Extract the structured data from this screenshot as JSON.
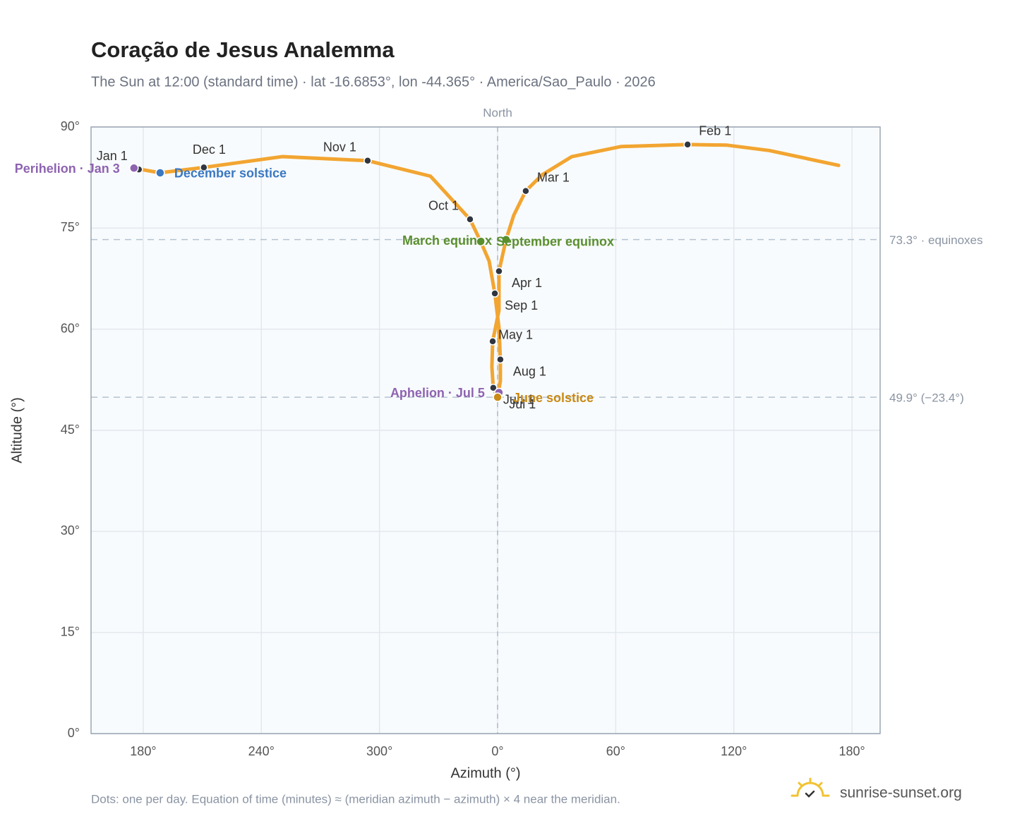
{
  "chart_data": {
    "type": "scatter",
    "title": "Coração de Jesus Analemma",
    "subtitle": "The Sun at 12:00 (standard time) · lat -16.6853°, lon -44.365° · America/Sao_Paulo · 2026",
    "x_label": "Azimuth (°)",
    "y_label": "Altitude (°)",
    "xlim": [
      153.5,
      554.3
    ],
    "ylim": [
      0,
      90
    ],
    "xticks": [
      {
        "value": 180,
        "label": "180°"
      },
      {
        "value": 240,
        "label": "240°"
      },
      {
        "value": 300,
        "label": "300°"
      },
      {
        "value": 360,
        "label": "0°"
      },
      {
        "value": 420,
        "label": "60°"
      },
      {
        "value": 480,
        "label": "120°"
      },
      {
        "value": 540,
        "label": "180°"
      }
    ],
    "yticks": [
      {
        "value": 0,
        "label": "0°"
      },
      {
        "value": 15,
        "label": "15°"
      },
      {
        "value": 30,
        "label": "30°"
      },
      {
        "value": 45,
        "label": "45°"
      },
      {
        "value": 60,
        "label": "60°"
      },
      {
        "value": 75,
        "label": "75°"
      },
      {
        "value": 90,
        "label": "90°"
      }
    ],
    "grid": true,
    "color": "#f2a531",
    "meridian": {
      "value": 360,
      "label": "North"
    },
    "x": [
      177.8,
      175.3,
      null,
      533.2,
      498.1,
      476.6,
      456.5,
      422.8,
      397.7,
      382.6,
      374.3,
      368.2,
      364.3,
      360.7,
      360.7,
      357.5,
      357.1,
      357.8,
      360.0,
      360.1,
      361.4,
      361.4,
      360.7,
      358.6,
      355.7,
      351.4,
      346.0,
      325.9,
      294.0,
      250.6,
      210.8,
      196.8,
      188.6,
      178.9
    ],
    "values": [
      83.7,
      83.9,
      null,
      84.3,
      86.5,
      87.3,
      87.4,
      87.1,
      85.6,
      82.9,
      80.5,
      76.9,
      73.3,
      68.6,
      62.8,
      58.2,
      54.4,
      51.3,
      49.9,
      50.2,
      52.3,
      55.5,
      60.2,
      65.3,
      70.1,
      73.0,
      76.3,
      82.7,
      85.0,
      85.6,
      84.0,
      83.5,
      83.2,
      83.7
    ],
    "labels": [
      "Jan 1",
      null,
      null,
      null,
      null,
      null,
      "Feb 1",
      null,
      null,
      null,
      "Mar 1",
      null,
      null,
      "Apr 1",
      null,
      "May 1",
      null,
      "Jun 1",
      null,
      "Jul 1",
      null,
      "Aug 1",
      null,
      "Sep 1",
      null,
      null,
      "Oct 1",
      null,
      "Nov 1",
      null,
      "Dec 1",
      null,
      null,
      null
    ],
    "events": [
      {
        "label": "Perihelion · Jan 3",
        "x": 175.3,
        "y": 83.9,
        "color": "#8e63b0"
      },
      {
        "label": "December solstice",
        "x": 188.6,
        "y": 83.2,
        "color": "#3a78c2"
      },
      {
        "label": "March equinox",
        "x": 351.4,
        "y": 73.0,
        "color": "#5a8f2e"
      },
      {
        "label": "September equinox",
        "x": 364.3,
        "y": 73.3,
        "color": "#5a8f2e"
      },
      {
        "label": "Aphelion · Jul 5",
        "x": 360.7,
        "y": 50.6,
        "color": "#8e63b0"
      },
      {
        "label": "June solstice",
        "x": 360.0,
        "y": 49.9,
        "color": "#c98a16"
      }
    ],
    "reference_lines": [
      {
        "value": 73.3,
        "label": "73.3° · equinoxes"
      },
      {
        "value": 49.9,
        "label": "49.9° (−23.4°)"
      }
    ],
    "note": "Dots: one per day. Equation of time (minutes) ≈ (meridian azimuth − azimuth) × 4 near the meridian.",
    "brand": "sunrise-sunset.org"
  }
}
